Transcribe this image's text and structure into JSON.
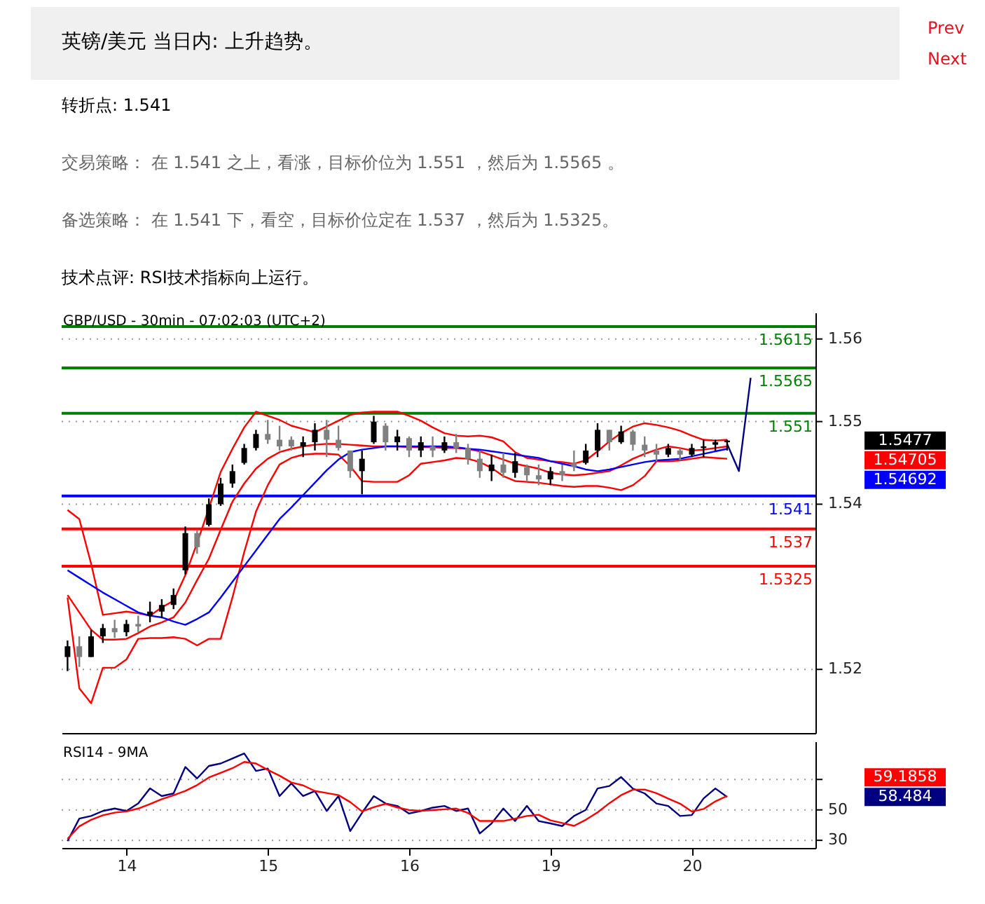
{
  "chart_data": [
    {
      "type": "candlestick",
      "title": "英镑/美元 当日内: 上升趋势。",
      "subtitle": "GBP/USD - 30min - 07:02:03 (UTC+2)",
      "annotations": [
        "Prev",
        "Next",
        "转折点: 1.541",
        "交易策略： 在 1.541 之上，看涨，目标价位为 1.551 ，然后为 1.5565 。",
        "备选策略： 在 1.541 下，看空，目标价位定在 1.537 ，然后为 1.5325。",
        "技术点评: RSI技术指标向上运行。",
        "1.5477",
        "1.54705",
        "1.54692"
      ],
      "categories": [
        null,
        null,
        null,
        null,
        null,
        "14",
        null,
        null,
        null,
        null,
        null,
        null,
        null,
        null,
        null,
        null,
        null,
        "15",
        null,
        null,
        null,
        null,
        null,
        null,
        null,
        null,
        null,
        null,
        null,
        "16",
        null,
        null,
        null,
        null,
        null,
        null,
        null,
        null,
        null,
        null,
        null,
        "19",
        null,
        null,
        null,
        null,
        null,
        null,
        null,
        null,
        null,
        null,
        null,
        "20",
        null,
        null,
        null,
        null,
        null,
        null,
        null,
        null,
        null,
        null
      ],
      "ohlc": [
        [
          1.5215,
          1.5235,
          1.5198,
          1.5228
        ],
        [
          1.5228,
          1.524,
          1.5203,
          1.5215
        ],
        [
          1.5215,
          1.5248,
          1.5215,
          1.524
        ],
        [
          1.524,
          1.5255,
          1.5232,
          1.525
        ],
        [
          1.525,
          1.526,
          1.5238,
          1.5245
        ],
        [
          1.5245,
          1.526,
          1.524,
          1.5255
        ],
        [
          1.5255,
          1.5265,
          1.5245,
          1.5252
        ],
        [
          1.5265,
          1.5282,
          1.5257,
          1.527
        ],
        [
          1.527,
          1.5285,
          1.5262,
          1.5278
        ],
        [
          1.5278,
          1.5298,
          1.5273,
          1.529
        ],
        [
          1.532,
          1.5373,
          1.5315,
          1.5365
        ],
        [
          1.5365,
          1.5368,
          1.534,
          1.5348
        ],
        [
          1.5375,
          1.5407,
          1.5373,
          1.54
        ],
        [
          1.54,
          1.5432,
          1.5398,
          1.5425
        ],
        [
          1.5425,
          1.5448,
          1.542,
          1.544
        ],
        [
          1.545,
          1.5473,
          1.5448,
          1.5468
        ],
        [
          1.5468,
          1.549,
          1.5465,
          1.5485
        ],
        [
          1.5485,
          1.5502,
          1.5473,
          1.5478
        ],
        [
          1.5478,
          1.5495,
          1.5465,
          1.547
        ],
        [
          1.5478,
          1.5482,
          1.5465,
          1.547
        ],
        [
          1.547,
          1.5482,
          1.5457,
          1.5475
        ],
        [
          1.5475,
          1.5498,
          1.5465,
          1.549
        ],
        [
          1.549,
          1.5502,
          1.5457,
          1.5478
        ],
        [
          1.5478,
          1.5495,
          1.5465,
          1.5468
        ],
        [
          1.5465,
          1.5465,
          1.5432,
          1.544
        ],
        [
          1.544,
          1.5465,
          1.5412,
          1.5455
        ],
        [
          1.5475,
          1.5507,
          1.5473,
          1.55
        ],
        [
          1.5495,
          1.5498,
          1.5465,
          1.5475
        ],
        [
          1.5475,
          1.549,
          1.5465,
          1.5482
        ],
        [
          1.548,
          1.5482,
          1.5457,
          1.5465
        ],
        [
          1.5465,
          1.5482,
          1.5457,
          1.5475
        ],
        [
          1.547,
          1.5482,
          1.5457,
          1.5465
        ],
        [
          1.5465,
          1.5482,
          1.5462,
          1.5475
        ],
        [
          1.5475,
          1.5485,
          1.5462,
          1.5468
        ],
        [
          1.5468,
          1.5473,
          1.5448,
          1.5455
        ],
        [
          1.5455,
          1.5465,
          1.5432,
          1.544
        ],
        [
          1.544,
          1.546,
          1.5428,
          1.5448
        ],
        [
          1.5448,
          1.5462,
          1.5432,
          1.5438
        ],
        [
          1.5438,
          1.5462,
          1.5432,
          1.5452
        ],
        [
          1.5445,
          1.5448,
          1.5428,
          1.5435
        ],
        [
          1.5435,
          1.5448,
          1.5423,
          1.543
        ],
        [
          1.543,
          1.5445,
          1.5423,
          1.544
        ],
        [
          1.544,
          1.5448,
          1.5428,
          1.5435
        ],
        [
          1.545,
          1.5465,
          1.544,
          1.5445
        ],
        [
          1.545,
          1.5473,
          1.5448,
          1.5465
        ],
        [
          1.5465,
          1.5498,
          1.5457,
          1.549
        ],
        [
          1.549,
          1.549,
          1.5465,
          1.5475
        ],
        [
          1.5475,
          1.5495,
          1.5473,
          1.5488
        ],
        [
          1.5488,
          1.549,
          1.5465,
          1.5472
        ],
        [
          1.5472,
          1.5482,
          1.5457,
          1.5465
        ],
        [
          1.5465,
          1.5473,
          1.5452,
          1.546
        ],
        [
          1.546,
          1.5473,
          1.5457,
          1.5468
        ],
        [
          1.5465,
          1.5468,
          1.5453,
          1.546
        ],
        [
          1.546,
          1.5473,
          1.5457,
          1.5468
        ],
        [
          1.5468,
          1.5478,
          1.5457,
          1.547
        ],
        [
          1.5472,
          1.5478,
          1.5465,
          1.5475
        ],
        [
          1.5475,
          1.5478,
          1.5465,
          1.5477
        ],
        null,
        null,
        null,
        null,
        null,
        null,
        null
      ],
      "series": [
        {
          "type": "line",
          "color": "#ff0000",
          "values": [
            1.5393,
            1.5382,
            1.5328,
            1.5266,
            1.5268,
            1.527,
            1.5268,
            1.5265,
            1.5275,
            1.5283,
            1.5314,
            1.5353,
            1.5395,
            1.5439,
            1.5467,
            1.5493,
            1.5512,
            1.5507,
            1.5502,
            1.5495,
            1.5491,
            1.5487,
            1.5494,
            1.5501,
            1.5508,
            1.5511,
            1.5512,
            1.5512,
            1.5512,
            1.5507,
            1.5501,
            1.5493,
            1.5486,
            1.5483,
            1.5482,
            1.5483,
            1.5481,
            1.5476,
            1.5463,
            1.5456,
            1.5454,
            1.5452,
            1.5451,
            1.5449,
            1.5453,
            1.5464,
            1.5476,
            1.5486,
            1.5494,
            1.5498,
            1.5496,
            1.5493,
            1.5489,
            1.5483,
            1.5478,
            1.5477,
            1.5478,
            null,
            null,
            null,
            null,
            null,
            null,
            null
          ]
        },
        {
          "type": "line",
          "color": "#ff0000",
          "values": [
            1.5287,
            1.5177,
            1.5159,
            1.5202,
            1.5202,
            1.5212,
            1.5237,
            1.5238,
            1.5238,
            1.5239,
            1.5237,
            1.5229,
            1.5237,
            1.5237,
            1.5287,
            1.5342,
            1.5391,
            1.5423,
            1.5448,
            1.5456,
            1.546,
            1.5461,
            1.5461,
            1.546,
            1.5446,
            1.5428,
            1.5427,
            1.5427,
            1.5427,
            1.5435,
            1.5449,
            1.5451,
            1.5453,
            1.5456,
            1.5455,
            1.5451,
            1.5444,
            1.5434,
            1.5428,
            1.5427,
            1.5426,
            1.5424,
            1.5422,
            1.5421,
            1.5422,
            1.5422,
            1.542,
            1.5417,
            1.5423,
            1.5434,
            1.5452,
            1.5452,
            1.5453,
            1.5455,
            1.5457,
            1.5456,
            1.5455,
            null,
            null,
            null,
            null,
            null,
            null,
            null
          ]
        },
        {
          "type": "line",
          "color": "#ff0000",
          "values": [
            1.529,
            1.5269,
            1.5248,
            1.5236,
            1.5236,
            1.5237,
            1.5244,
            1.5252,
            1.5257,
            1.5263,
            1.5281,
            1.5308,
            1.5334,
            1.5369,
            1.5403,
            1.5425,
            1.5443,
            1.5455,
            1.5463,
            1.5467,
            1.547,
            1.5472,
            1.5473,
            1.5473,
            1.5472,
            1.5471,
            1.547,
            1.547,
            1.547,
            1.5469,
            1.5469,
            1.5469,
            1.5468,
            1.5468,
            1.5467,
            1.5464,
            1.5459,
            1.5454,
            1.5449,
            1.5446,
            1.5443,
            1.5438,
            1.5436,
            1.5435,
            1.5436,
            1.5438,
            1.544,
            1.5447,
            1.5455,
            1.5461,
            1.5466,
            1.547,
            1.5468,
            1.5465,
            1.5466,
            1.5468,
            1.547,
            null,
            null,
            null,
            null,
            null,
            null,
            null
          ]
        },
        {
          "type": "line",
          "color": "#0000ff",
          "values": [
            1.532,
            1.5311,
            1.5302,
            1.5293,
            1.5285,
            1.5277,
            1.5269,
            1.5265,
            1.5263,
            1.5258,
            1.5254,
            1.5261,
            1.5269,
            1.5287,
            1.5306,
            1.5325,
            1.5344,
            1.5363,
            1.5382,
            1.5396,
            1.5411,
            1.5426,
            1.5441,
            1.5454,
            1.5463,
            1.5466,
            1.5468,
            1.547,
            1.547,
            1.547,
            1.547,
            1.547,
            1.547,
            1.5469,
            1.5467,
            1.5466,
            1.5464,
            1.5462,
            1.546,
            1.5458,
            1.5456,
            1.5452,
            1.5449,
            1.5446,
            1.5442,
            1.544,
            1.5442,
            1.5445,
            1.5448,
            1.5451,
            1.5453,
            1.5454,
            1.5455,
            1.5458,
            1.5461,
            1.5464,
            1.5467,
            null,
            null,
            null,
            null,
            null,
            null,
            null
          ]
        },
        {
          "type": "line",
          "color": "#000080",
          "values": [
            null,
            null,
            null,
            null,
            null,
            null,
            null,
            null,
            null,
            null,
            null,
            null,
            null,
            null,
            null,
            null,
            null,
            null,
            null,
            null,
            null,
            null,
            null,
            null,
            null,
            null,
            null,
            null,
            null,
            null,
            null,
            null,
            null,
            null,
            null,
            null,
            null,
            null,
            null,
            null,
            null,
            null,
            null,
            null,
            null,
            null,
            null,
            null,
            null,
            null,
            null,
            null,
            null,
            null,
            null,
            null,
            1.5473,
            1.544,
            1.5553,
            null,
            null,
            null,
            null,
            null
          ]
        }
      ],
      "ref_lines": [
        {
          "axis": "y",
          "value": 1.5615,
          "label": "1.5615",
          "color": "#008000"
        },
        {
          "axis": "y",
          "value": 1.5565,
          "label": "1.5565",
          "color": "#008000"
        },
        {
          "axis": "y",
          "value": 1.551,
          "label": "1.551",
          "color": "#008000"
        },
        {
          "axis": "y",
          "value": 1.541,
          "label": "1.541",
          "color": "#0000ff"
        },
        {
          "axis": "y",
          "value": 1.537,
          "label": "1.537",
          "color": "#ff0000"
        },
        {
          "axis": "y",
          "value": 1.5325,
          "label": "1.5325",
          "color": "#ff0000"
        }
      ],
      "ylim": [
        1.5123,
        1.5632
      ],
      "yticks": [
        1.52,
        1.54,
        1.55,
        1.56
      ],
      "grid": "y",
      "tick_labels": "y"
    },
    {
      "type": "line",
      "title": "RSI14 - 9MA",
      "annotations": [
        "59.1858",
        "58.484"
      ],
      "categories": [
        null,
        null,
        null,
        null,
        null,
        "14",
        null,
        null,
        null,
        null,
        null,
        null,
        null,
        null,
        null,
        null,
        null,
        "15",
        null,
        null,
        null,
        null,
        null,
        null,
        null,
        null,
        null,
        null,
        null,
        "16",
        null,
        null,
        null,
        null,
        null,
        null,
        null,
        null,
        null,
        null,
        null,
        "19",
        null,
        null,
        null,
        null,
        null,
        null,
        null,
        null,
        null,
        null,
        null,
        "20",
        null,
        null,
        null,
        null,
        null,
        null,
        null,
        null,
        null,
        null
      ],
      "series": [
        {
          "color": "#000080",
          "values": [
            29.5,
            44.3,
            46.0,
            49.3,
            50.9,
            49.3,
            54.2,
            64.1,
            59.1,
            60.8,
            78.2,
            70.7,
            78.9,
            80.5,
            83.8,
            87.1,
            75.6,
            77.2,
            59.1,
            67.4,
            59.1,
            62.4,
            49.3,
            59.1,
            36.1,
            48.0,
            59.1,
            54.2,
            52.6,
            47.6,
            49.3,
            51.5,
            52.6,
            49.3,
            50.9,
            34.5,
            41.1,
            50.9,
            42.7,
            52.6,
            42.7,
            41.1,
            39.4,
            46.0,
            50.0,
            64.1,
            65.7,
            71.6,
            64.0,
            60.8,
            54.2,
            52.6,
            46.0,
            46.6,
            57.5,
            64.1,
            58.5,
            null,
            null,
            null,
            null,
            null,
            null,
            null
          ]
        },
        {
          "color": "#ff0000",
          "values": [
            31.0,
            39.2,
            43.5,
            46.5,
            48.2,
            49.0,
            50.9,
            53.8,
            57.1,
            59.6,
            62.5,
            66.3,
            71.3,
            74.3,
            77.4,
            81.5,
            80.5,
            76.3,
            72.5,
            68.0,
            66.1,
            62.4,
            61.1,
            59.7,
            55.1,
            49.0,
            51.8,
            54.0,
            51.6,
            49.9,
            49.4,
            49.9,
            50.4,
            50.9,
            48.0,
            42.7,
            42.7,
            42.7,
            44.3,
            46.0,
            46.8,
            43.1,
            41.4,
            39.5,
            43.5,
            48.4,
            54.4,
            59.7,
            63.3,
            63.4,
            61.0,
            57.4,
            54.1,
            48.9,
            50.6,
            55.6,
            59.2,
            null,
            null,
            null,
            null,
            null,
            null,
            null
          ]
        }
      ],
      "ylim": [
        25,
        95
      ],
      "yticks": [
        30,
        50,
        {
          "value": 70,
          "label": null
        }
      ],
      "grid": "y"
    }
  ]
}
